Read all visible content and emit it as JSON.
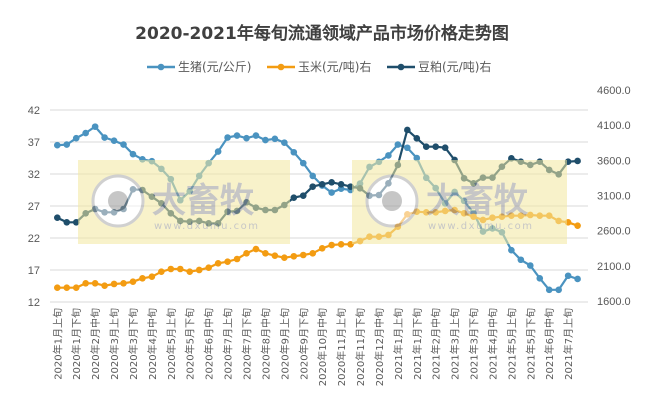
{
  "chart_data": {
    "type": "line",
    "title": "2020-2021年每旬流通领域产品市场价格走势图",
    "legend_position": "top",
    "grid": true,
    "categories": [
      "2020年1月上旬",
      "2020年1月中旬",
      "2020年1月下旬",
      "2020年2月上旬",
      "2020年2月中旬",
      "2020年2月下旬",
      "2020年3月上旬",
      "2020年3月中旬",
      "2020年3月下旬",
      "2020年4月上旬",
      "2020年4月中旬",
      "2020年4月下旬",
      "2020年5月上旬",
      "2020年5月中旬",
      "2020年5月下旬",
      "2020年6月上旬",
      "2020年6月中旬",
      "2020年6月下旬",
      "2020年7月上旬",
      "2020年7月中旬",
      "2020年7月下旬",
      "2020年8月上旬",
      "2020年8月中旬",
      "2020年8月下旬",
      "2020年9月上旬",
      "2020年9月中旬",
      "2020年9月下旬",
      "2020年10月上旬",
      "2020年10月中旬",
      "2020年10月下旬",
      "2020年11月上旬",
      "2020年11月中旬",
      "2020年11月下旬",
      "2020年12月上旬",
      "2020年12月中旬",
      "2020年12月下旬",
      "2021年1月上旬",
      "2021年1月中旬",
      "2021年1月下旬",
      "2021年2月上旬",
      "2021年2月中旬",
      "2021年2月下旬",
      "2021年3月上旬",
      "2021年3月中旬",
      "2021年3月下旬",
      "2021年4月上旬",
      "2021年4月中旬",
      "2021年4月下旬",
      "2021年5月上旬",
      "2021年5月中旬",
      "2021年5月下旬",
      "2021年6月上旬",
      "2021年6月中旬",
      "2021年6月下旬",
      "2021年7月上旬",
      "2021年7月中旬"
    ],
    "y_left": {
      "ticks": [
        "42",
        "37",
        "32",
        "27",
        "22",
        "17",
        "12"
      ],
      "range": [
        12,
        42
      ]
    },
    "y_right": {
      "ticks": [
        "4600.0",
        "4100.0",
        "3600.0",
        "3100.0",
        "2600.0",
        "2100.0",
        "1600.0"
      ],
      "range": [
        1600,
        4600
      ]
    },
    "series": [
      {
        "name": "生猪(元/公斤)",
        "axis": "left",
        "color": "#4a93c0",
        "values": [
          36.5,
          36.6,
          37.6,
          38.4,
          39.4,
          37.7,
          37.2,
          36.6,
          35.1,
          34.3,
          34.0,
          32.8,
          31.2,
          27.9,
          29.3,
          31.7,
          33.7,
          35.5,
          37.7,
          38.0,
          37.6,
          38.0,
          37.3,
          37.5,
          36.9,
          35.4,
          33.7,
          31.7,
          30.2,
          29.1,
          29.7,
          29.5,
          30.5,
          33.1,
          33.9,
          34.9,
          36.6,
          36.1,
          34.5,
          31.4,
          29.8,
          27.4,
          29.2,
          27.8,
          25.9,
          23.0,
          23.5,
          22.9,
          20.1,
          18.6,
          17.7,
          15.7,
          13.9,
          13.9,
          16.1,
          15.6
        ]
      },
      {
        "name": "玉米(元/吨)右",
        "axis": "right",
        "color": "#f39c12",
        "values": [
          1789,
          1789,
          1789,
          1852,
          1852,
          1818,
          1842,
          1852,
          1875,
          1923,
          1946,
          2017,
          2055,
          2055,
          2017,
          2041,
          2074,
          2136,
          2159,
          2197,
          2278,
          2339,
          2278,
          2244,
          2216,
          2236,
          2254,
          2278,
          2349,
          2396,
          2406,
          2406,
          2453,
          2514,
          2514,
          2539,
          2657,
          2833,
          2870,
          2861,
          2861,
          2880,
          2894,
          2847,
          2799,
          2752,
          2785,
          2799,
          2813,
          2813,
          2823,
          2813,
          2813,
          2738,
          2719,
          2671
        ]
      },
      {
        "name": "豆粕(元/吨)右",
        "axis": "right",
        "color": "#1f4e6b",
        "values": [
          2785,
          2719,
          2719,
          2847,
          2908,
          2861,
          2861,
          2908,
          3188,
          3178,
          3083,
          2989,
          2847,
          2738,
          2728,
          2738,
          2705,
          2705,
          2870,
          2880,
          3004,
          2927,
          2894,
          2894,
          2965,
          3069,
          3098,
          3226,
          3259,
          3288,
          3259,
          3226,
          3202,
          3098,
          3107,
          3273,
          3534,
          4032,
          3913,
          3794,
          3794,
          3780,
          3605,
          3345,
          3273,
          3354,
          3354,
          3510,
          3629,
          3581,
          3534,
          3581,
          3463,
          3401,
          3581,
          3591
        ]
      }
    ]
  },
  "watermark": {
    "brand": "大畜牧",
    "url": "www.dxumu.com"
  }
}
